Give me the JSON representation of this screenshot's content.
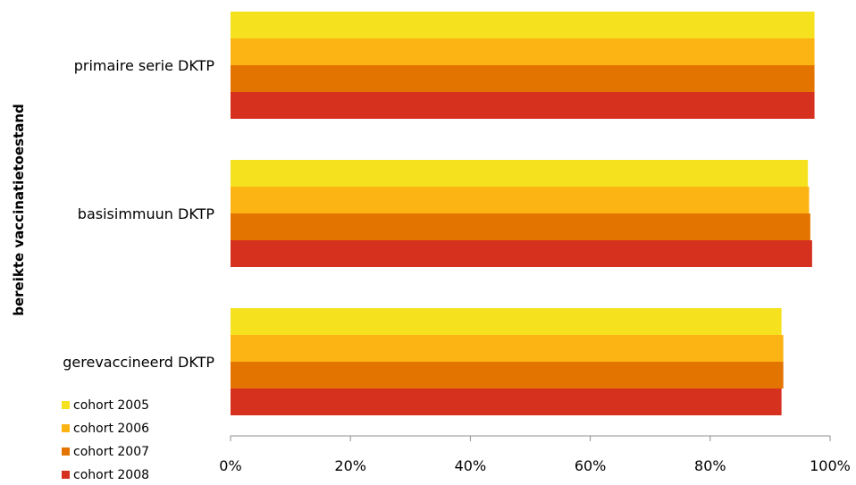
{
  "chart_data": {
    "type": "bar",
    "orientation": "horizontal",
    "categories": [
      "primaire serie DKTP",
      "basisimmuun DKTP",
      "gerevaccineerd DKTP"
    ],
    "series": [
      {
        "name": "cohort 2005",
        "color": "#f5e11e",
        "values": [
          97.4,
          96.3,
          91.9
        ]
      },
      {
        "name": "cohort 2006",
        "color": "#fcb314",
        "values": [
          97.4,
          96.5,
          92.2
        ]
      },
      {
        "name": "cohort 2007",
        "color": "#e37400",
        "values": [
          97.4,
          96.7,
          92.2
        ]
      },
      {
        "name": "cohort 2008",
        "color": "#d6301f",
        "values": [
          97.4,
          97.0,
          91.9
        ]
      }
    ],
    "xlim": [
      0,
      100
    ],
    "xticks": [
      "0%",
      "20%",
      "40%",
      "60%",
      "80%",
      "100%"
    ],
    "xlabel": "",
    "ylabel": "bereikte vaccinatietoestand",
    "grid": false,
    "legend_position": "bottom-left"
  }
}
